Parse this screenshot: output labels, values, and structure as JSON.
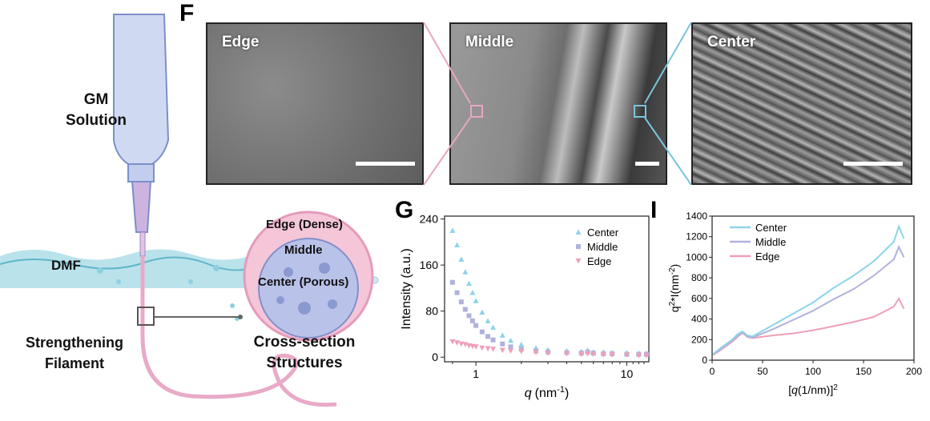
{
  "left_schematic": {
    "labels": {
      "gm_line1": "GM",
      "gm_line2": "Solution",
      "dmf": "DMF",
      "strengthening_line1": "Strengthening",
      "strengthening_line2": "Filament",
      "edge_dense": "Edge (Dense)",
      "middle": "Middle",
      "center_porous": "Center (Porous)",
      "cross_line1": "Cross-section",
      "cross_line2": "Structures"
    },
    "colors": {
      "syringe": "#c9d4ee",
      "water": "#7fc7d6",
      "filament": "#e9a9c7",
      "cross_outer": "#f4c6d8",
      "cross_inner": "#b9c2e8"
    }
  },
  "panel_f": {
    "letter": "F",
    "images": [
      {
        "label": "Edge"
      },
      {
        "label": "Middle"
      },
      {
        "label": "Center"
      }
    ],
    "colors": {
      "edge_connector": "#e8a6c4",
      "center_connector": "#7cc3dc"
    }
  },
  "panel_g": {
    "letter": "G"
  },
  "panel_i": {
    "letter": "I"
  },
  "chart_data": [
    {
      "type": "scatter",
      "xlabel_var": "q",
      "xlabel_unit": "(nm",
      "xlabel_sup": "-1",
      "xlabel_end": ")",
      "ylabel": "Intensity (a.u.)",
      "x_scale": "log",
      "xlim": [
        0.62,
        14
      ],
      "ylim": [
        -8,
        245
      ],
      "x_ticks": [
        {
          "v": 1,
          "label": "1"
        },
        {
          "v": 10,
          "label": "10"
        }
      ],
      "y_ticks": [
        0,
        80,
        160,
        240
      ],
      "legend_position": "top-right",
      "series": [
        {
          "name": "Center",
          "marker": "triangle-up",
          "color": "#8dd3ea",
          "x": [
            0.7,
            0.75,
            0.8,
            0.85,
            0.9,
            0.95,
            1.0,
            1.1,
            1.2,
            1.3,
            1.5,
            1.7,
            2.0,
            2.5,
            3.0,
            4.0,
            5.0,
            5.5,
            6.0,
            7.0,
            8.0,
            10.0,
            12.0,
            13.5
          ],
          "y": [
            220,
            195,
            170,
            148,
            128,
            112,
            98,
            78,
            63,
            52,
            38,
            29,
            22,
            16,
            13,
            11,
            10,
            12,
            9,
            9,
            8,
            8,
            7,
            7
          ]
        },
        {
          "name": "Middle",
          "marker": "square",
          "color": "#b0b2dc",
          "x": [
            0.7,
            0.75,
            0.8,
            0.85,
            0.9,
            0.95,
            1.0,
            1.1,
            1.2,
            1.3,
            1.5,
            1.7,
            2.0,
            2.5,
            3.0,
            4.0,
            5.0,
            5.5,
            6.0,
            7.0,
            8.0,
            10.0,
            12.0,
            13.5
          ],
          "y": [
            130,
            112,
            96,
            83,
            72,
            63,
            55,
            44,
            36,
            30,
            23,
            18,
            14,
            11,
            9,
            8,
            7,
            9,
            7,
            6,
            6,
            5,
            5,
            5
          ]
        },
        {
          "name": "Edge",
          "marker": "triangle-down",
          "color": "#ef9fb8",
          "x": [
            0.7,
            0.75,
            0.8,
            0.85,
            0.9,
            0.95,
            1.0,
            1.1,
            1.2,
            1.3,
            1.5,
            1.7,
            2.0,
            2.5,
            3.0,
            4.0,
            5.0,
            5.5,
            6.0,
            7.0,
            8.0,
            10.0,
            12.0,
            13.5
          ],
          "y": [
            27,
            25,
            23,
            22,
            20,
            19,
            18,
            16,
            15,
            14,
            12,
            11,
            10,
            8,
            7,
            6,
            5,
            6,
            5,
            4,
            4,
            4,
            3,
            3
          ]
        }
      ]
    },
    {
      "type": "line",
      "xlabel_pre": "[",
      "xlabel_var": "q",
      "xlabel_mid": "(1/nm)]",
      "xlabel_sup": "2",
      "ylabel_pre": "q",
      "ylabel_sup1": "2",
      "ylabel_mid": "*I(nm",
      "ylabel_sup2": "-2",
      "ylabel_end": ")",
      "xlim": [
        0,
        200
      ],
      "ylim": [
        0,
        1400
      ],
      "x_ticks": [
        0,
        50,
        100,
        150,
        200
      ],
      "y_ticks": [
        0,
        200,
        400,
        600,
        800,
        1000,
        1200,
        1400
      ],
      "legend_position": "top-left",
      "series": [
        {
          "name": "Center",
          "color": "#8dd3ea",
          "x": [
            1,
            10,
            20,
            25,
            30,
            35,
            40,
            60,
            80,
            100,
            120,
            140,
            160,
            180,
            185,
            190
          ],
          "y": [
            60,
            130,
            200,
            250,
            280,
            240,
            230,
            340,
            450,
            560,
            700,
            820,
            960,
            1150,
            1300,
            1180
          ]
        },
        {
          "name": "Middle",
          "color": "#b0b2dc",
          "x": [
            1,
            10,
            20,
            25,
            30,
            35,
            40,
            60,
            80,
            100,
            120,
            140,
            160,
            180,
            185,
            190
          ],
          "y": [
            55,
            120,
            190,
            235,
            270,
            230,
            220,
            300,
            390,
            480,
            590,
            690,
            820,
            980,
            1100,
            1000
          ]
        },
        {
          "name": "Edge",
          "color": "#ef9fb8",
          "x": [
            1,
            10,
            20,
            25,
            30,
            35,
            40,
            60,
            80,
            100,
            120,
            140,
            160,
            180,
            185,
            190
          ],
          "y": [
            50,
            110,
            180,
            225,
            265,
            225,
            215,
            240,
            260,
            290,
            330,
            370,
            420,
            520,
            600,
            500
          ]
        }
      ]
    }
  ]
}
